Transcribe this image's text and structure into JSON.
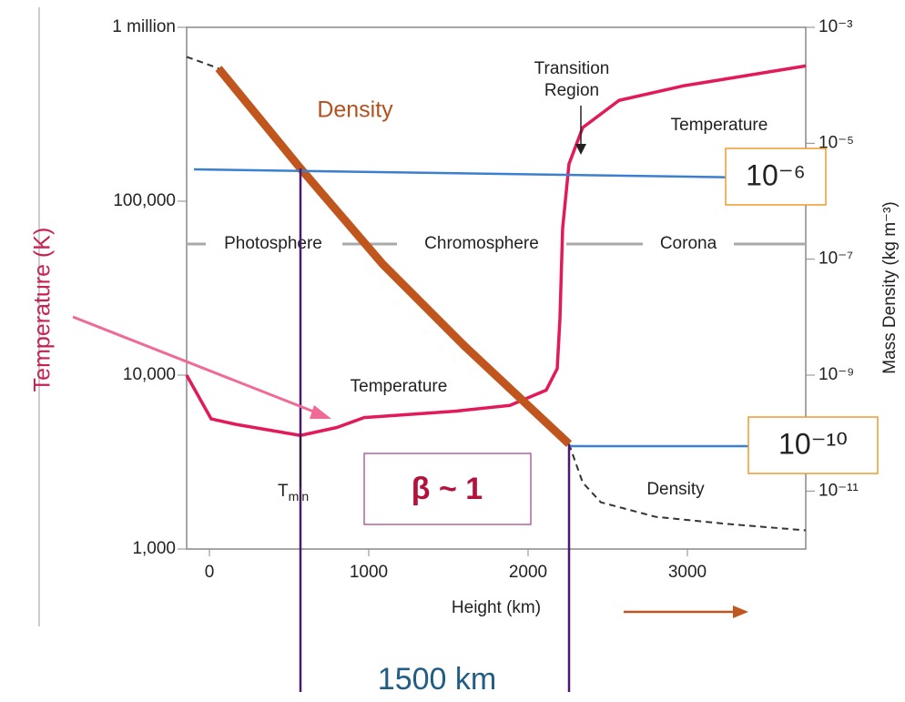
{
  "chart_data": {
    "type": "line",
    "xlabel": "Height (km)",
    "ylabel": "Temperature (K)",
    "y2label": "Mass Density (kg m⁻³)",
    "xlim": [
      -143,
      3743
    ],
    "xticks": [
      0,
      1000,
      2000,
      3000
    ],
    "ylim": [
      1000,
      1000000
    ],
    "log_y": true,
    "yticks": [
      {
        "value": 1000000,
        "label": "1 million"
      },
      {
        "value": 100000,
        "label": "100,000"
      },
      {
        "value": 10000,
        "label": "10,000"
      },
      {
        "value": 1000,
        "label": "1,000"
      }
    ],
    "y2lim": [
      1e-12,
      0.001
    ],
    "y2ticks": [
      {
        "value": 0.001,
        "label": "10⁻³"
      },
      {
        "value": 1e-05,
        "label": "10⁻⁵"
      },
      {
        "value": 1e-07,
        "label": "10⁻⁷"
      },
      {
        "value": 1e-09,
        "label": "10⁻⁹"
      },
      {
        "value": 1e-11,
        "label": "10⁻¹¹"
      }
    ],
    "series": [
      {
        "name": "Temperature",
        "color": "#e31a5a",
        "x": [
          -143,
          11,
          171,
          571,
          800,
          971,
          1543,
          1886,
          2114,
          2183,
          2200,
          2217,
          2257,
          2343,
          2571,
          2971,
          3743
        ],
        "values": [
          10000,
          5600,
          5200,
          4500,
          5000,
          5700,
          6200,
          6700,
          8200,
          10900,
          21000,
          70000,
          164000,
          265000,
          380000,
          460000,
          600000
        ]
      },
      {
        "name": "Density",
        "color": "#c0561e",
        "axis": "y2",
        "x": [
          57,
          571,
          1086,
          1600,
          2257
        ],
        "values": [
          0.000196,
          3.7e-06,
          8.3e-08,
          3.2e-09,
          6.5e-11
        ]
      },
      {
        "color": "#333333",
        "dashed": true,
        "axis": "y2",
        "x": [
          -143,
          57,
          1000,
          2257,
          2343,
          2457,
          2800,
          3257,
          3743
        ],
        "values": [
          0.00031,
          0.000196,
          null,
          6.5e-11,
          1.4e-11,
          6.4e-12,
          3.6e-12,
          2.7e-12,
          2.1e-12
        ]
      }
    ],
    "annotations": {
      "density_top": "Density",
      "transition": [
        "Transition",
        "Region"
      ],
      "temperature_top": "Temperature",
      "temperature_low": "Temperature",
      "photosphere": "Photosphere",
      "chromosphere": "Chromosphere",
      "corona": "Corona",
      "density_low": "Density",
      "tmin": [
        "T",
        "min"
      ],
      "beta": "β ~ 1",
      "d6": "10⁻⁶",
      "d10": "10⁻¹⁰",
      "width": "1500 km"
    }
  }
}
